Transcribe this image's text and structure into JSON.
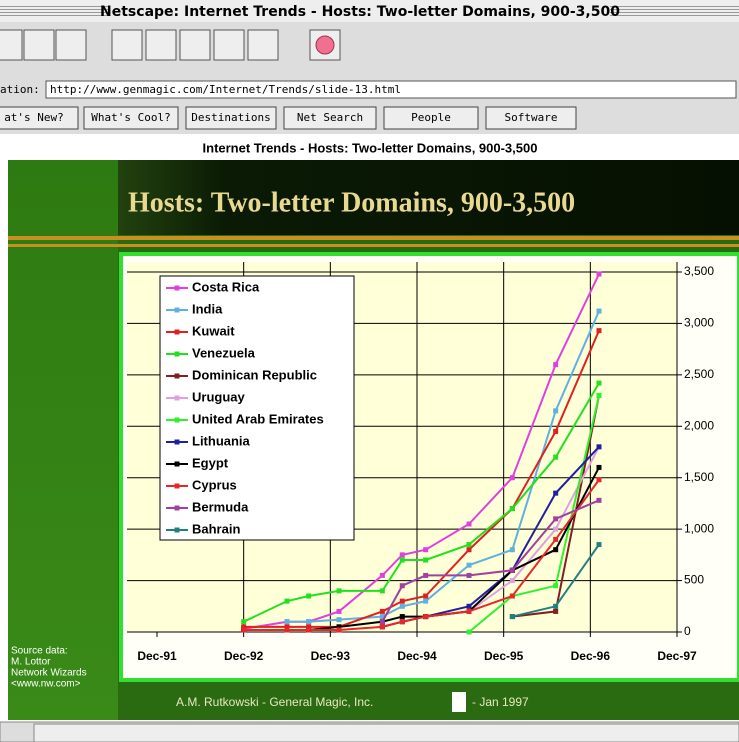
{
  "window_title": "Netscape: Internet Trends - Hosts: Two-letter Domains, 900-3,500",
  "location": {
    "label": "ation:",
    "url": "http://www.genmagic.com/Internet/Trends/slide-13.html"
  },
  "buttons": [
    "at's New?",
    "What's Cool?",
    "Destinations",
    "Net Search",
    "People",
    "Software"
  ],
  "page_heading": "Internet Trends - Hosts: Two-letter Domains, 900-3,500",
  "slide": {
    "source": [
      "Source data:",
      "M. Lottor",
      "Network Wizards",
      "<www.nw.com>"
    ],
    "footer_left": "A.M. Rutkowski  - General Magic, Inc.",
    "footer_right": "- Jan 1997"
  },
  "chart_data": {
    "type": "line",
    "title": "Hosts: Two-letter Domains, 900-3,500",
    "x": [
      1993.0,
      1993.5,
      1993.75,
      1994.1,
      1994.6,
      1994.83,
      1995.1,
      1995.6,
      1996.1,
      1996.6,
      1997.1
    ],
    "xlim": [
      1992,
      1998
    ],
    "xticks": [
      {
        "value": 1992,
        "label": "Dec-91"
      },
      {
        "value": 1993,
        "label": "Dec-92"
      },
      {
        "value": 1994,
        "label": "Dec-93"
      },
      {
        "value": 1995,
        "label": "Dec-94"
      },
      {
        "value": 1996,
        "label": "Dec-95"
      },
      {
        "value": 1997,
        "label": "Dec-96"
      },
      {
        "value": 1998,
        "label": "Dec-97"
      }
    ],
    "ylim": [
      0,
      3500
    ],
    "yticks": [
      0,
      500,
      {
        "value": 1000,
        "label": "1,000"
      },
      {
        "value": 1500,
        "label": "1,500"
      },
      {
        "value": 2000,
        "label": "2,000"
      },
      {
        "value": 2500,
        "label": "2,500"
      },
      {
        "value": 3000,
        "label": "3,000"
      },
      {
        "value": 3500,
        "label": "3,500"
      }
    ],
    "grid": true,
    "series": [
      {
        "name": "Costa Rica",
        "color": "#e040e0",
        "values": [
          30,
          100,
          100,
          200,
          550,
          750,
          800,
          1050,
          1500,
          2600,
          3480
        ]
      },
      {
        "name": "India",
        "color": "#60b0e0",
        "values": [
          null,
          100,
          100,
          120,
          150,
          250,
          300,
          650,
          800,
          2150,
          3120
        ]
      },
      {
        "name": "Kuwait",
        "color": "#e02020",
        "values": [
          50,
          50,
          50,
          50,
          200,
          300,
          350,
          800,
          1200,
          1950,
          2930
        ]
      },
      {
        "name": "Venezuela",
        "color": "#20e020",
        "values": [
          100,
          300,
          350,
          400,
          400,
          700,
          700,
          850,
          1200,
          1700,
          2420
        ]
      },
      {
        "name": "Dominican Republic",
        "color": "#802020",
        "values": [
          null,
          null,
          null,
          null,
          null,
          null,
          null,
          null,
          150,
          200,
          2300
        ]
      },
      {
        "name": "Uruguay",
        "color": "#e0a0e0",
        "values": [
          null,
          null,
          null,
          null,
          50,
          100,
          150,
          200,
          500,
          1000,
          1800
        ]
      },
      {
        "name": "United Arab Emirates",
        "color": "#30f030",
        "values": [
          null,
          null,
          null,
          null,
          null,
          null,
          null,
          0,
          350,
          450,
          2300
        ]
      },
      {
        "name": "Lithuania",
        "color": "#2020a0",
        "values": [
          null,
          null,
          null,
          null,
          50,
          100,
          150,
          250,
          600,
          1350,
          1800
        ]
      },
      {
        "name": "Egypt",
        "color": "#000000",
        "values": [
          20,
          20,
          20,
          50,
          100,
          150,
          150,
          200,
          600,
          800,
          1600
        ]
      },
      {
        "name": "Cyprus",
        "color": "#e82828",
        "values": [
          20,
          20,
          20,
          20,
          50,
          100,
          150,
          200,
          350,
          900,
          1480
        ]
      },
      {
        "name": "Bermuda",
        "color": "#a040a0",
        "values": [
          null,
          null,
          null,
          null,
          100,
          450,
          550,
          550,
          600,
          1100,
          1280
        ]
      },
      {
        "name": "Bahrain",
        "color": "#208080",
        "values": [
          null,
          null,
          null,
          null,
          null,
          null,
          null,
          null,
          150,
          250,
          850
        ]
      }
    ]
  }
}
